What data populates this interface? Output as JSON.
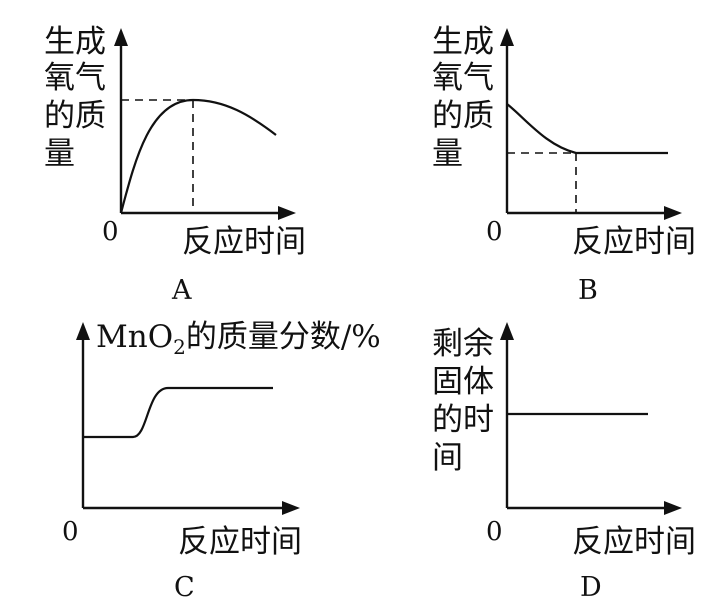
{
  "panels": [
    {
      "id": "A",
      "y_label_lines": [
        "生成",
        "氧气",
        "的质",
        "量"
      ],
      "x_label": "反应时间",
      "origin_label": "0",
      "caption": "A"
    },
    {
      "id": "B",
      "y_label_lines": [
        "生成",
        "氧气",
        "的质",
        "量"
      ],
      "x_label": "反应时间",
      "origin_label": "0",
      "caption": "B"
    },
    {
      "id": "C",
      "y_label_main": "MnO",
      "y_label_sub": "2",
      "y_label_rest": "的质量分数/%",
      "x_label": "反应时间",
      "origin_label": "0",
      "caption": "C"
    },
    {
      "id": "D",
      "y_label_lines": [
        "剩余",
        "固体",
        "的时",
        "间"
      ],
      "x_label": "反应时间",
      "origin_label": "0",
      "caption": "D"
    }
  ]
}
